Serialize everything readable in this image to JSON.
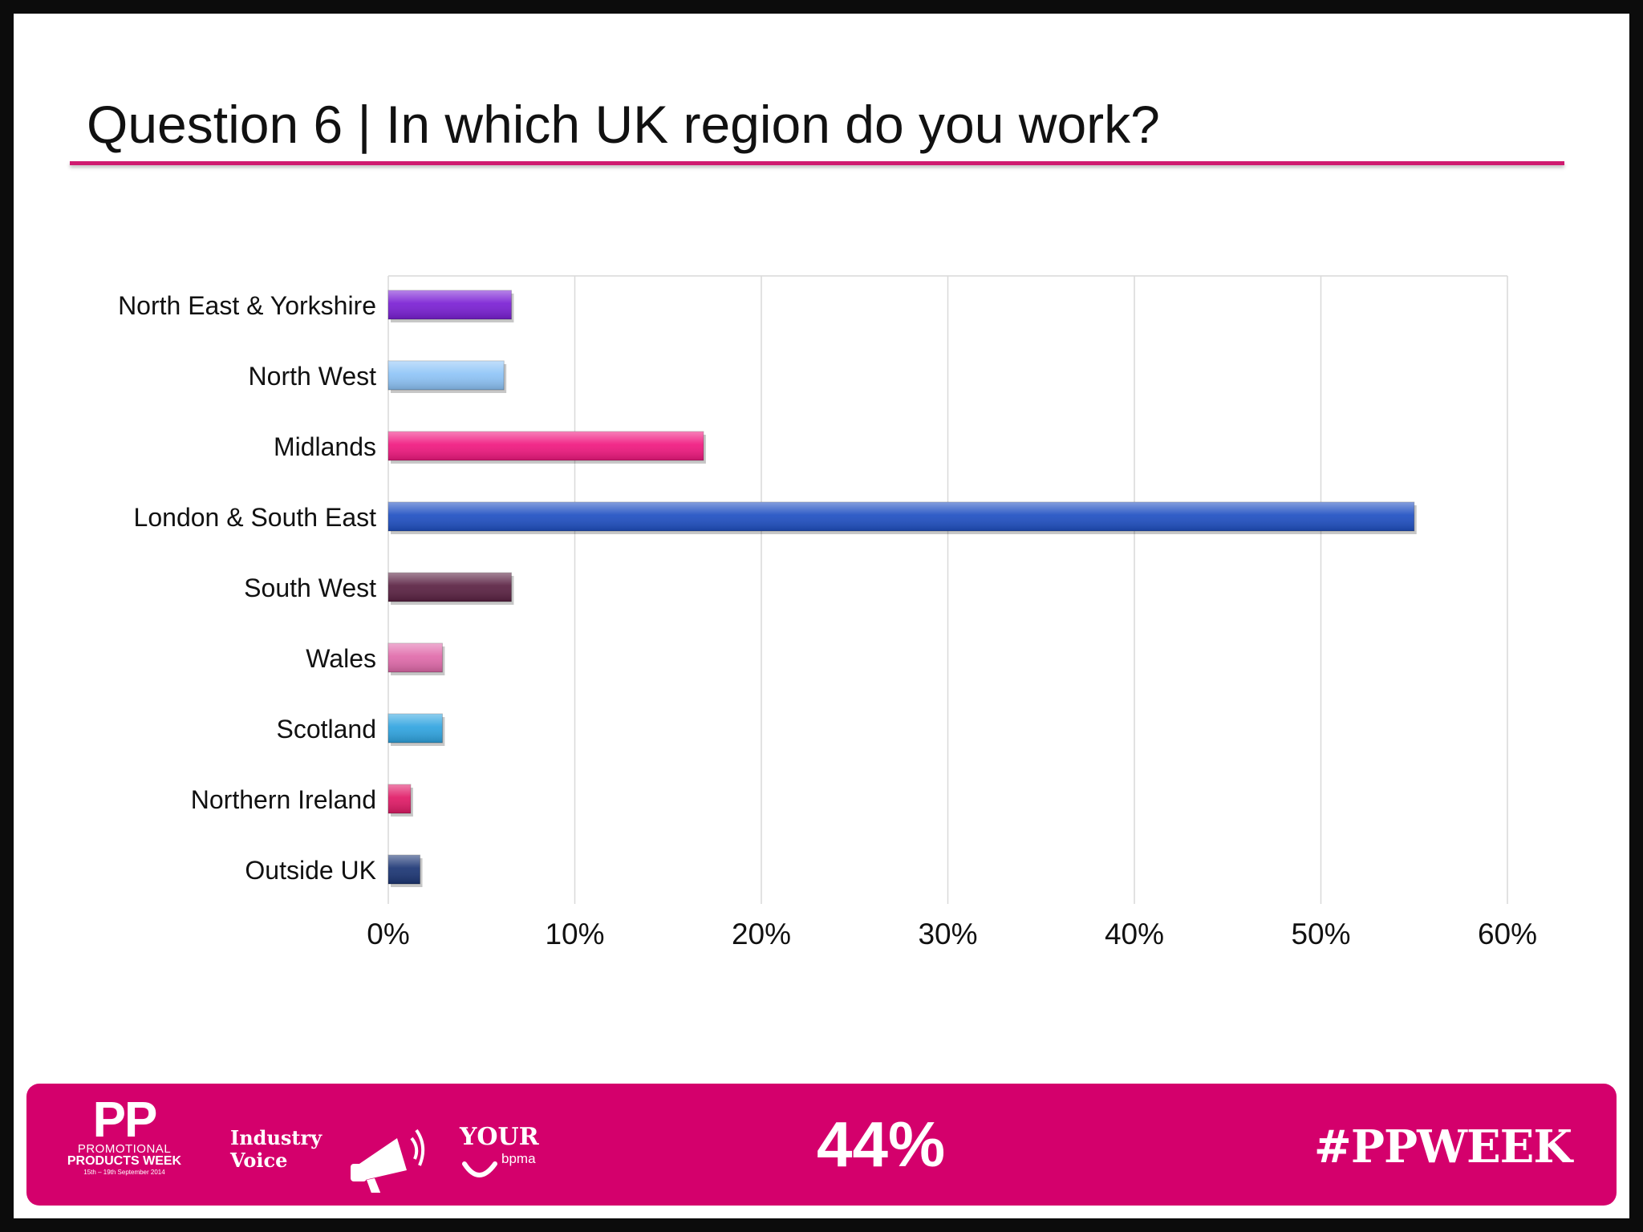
{
  "slide": {
    "title": "Question 6 | In which UK region do you work?"
  },
  "chart_data": {
    "type": "bar",
    "orientation": "horizontal",
    "title": "",
    "xlabel": "",
    "ylabel": "",
    "categories": [
      "North East & Yorkshire",
      "North West",
      "Midlands",
      "London & South East",
      "South West",
      "Wales",
      "Scotland",
      "Northern Ireland",
      "Outside UK"
    ],
    "values": [
      6.6,
      6.2,
      16.9,
      55.0,
      6.6,
      2.9,
      2.9,
      1.2,
      1.7
    ],
    "colors": [
      "#7a1fd4",
      "#8ec4f7",
      "#f0187f",
      "#1f4fc2",
      "#5a2142",
      "#e06aaa",
      "#2fa4e0",
      "#e01a66",
      "#1b3574"
    ],
    "xlim": [
      0,
      60
    ],
    "xticks": [
      "0%",
      "10%",
      "20%",
      "30%",
      "40%",
      "50%",
      "60%"
    ],
    "grid": true,
    "legend": "none"
  },
  "footer": {
    "logo_pp": "PP",
    "logo_line1": "PROMOTIONAL",
    "logo_line2": "PRODUCTS WEEK",
    "logo_line3": "15th – 19th September 2014",
    "industry_line1": "Industry",
    "industry_line2": "Voice",
    "your_line1": "YOUR",
    "your_line2": "bpma",
    "stat": "44%",
    "hashtag": "#PPWEEK",
    "color": "#d4006c"
  }
}
